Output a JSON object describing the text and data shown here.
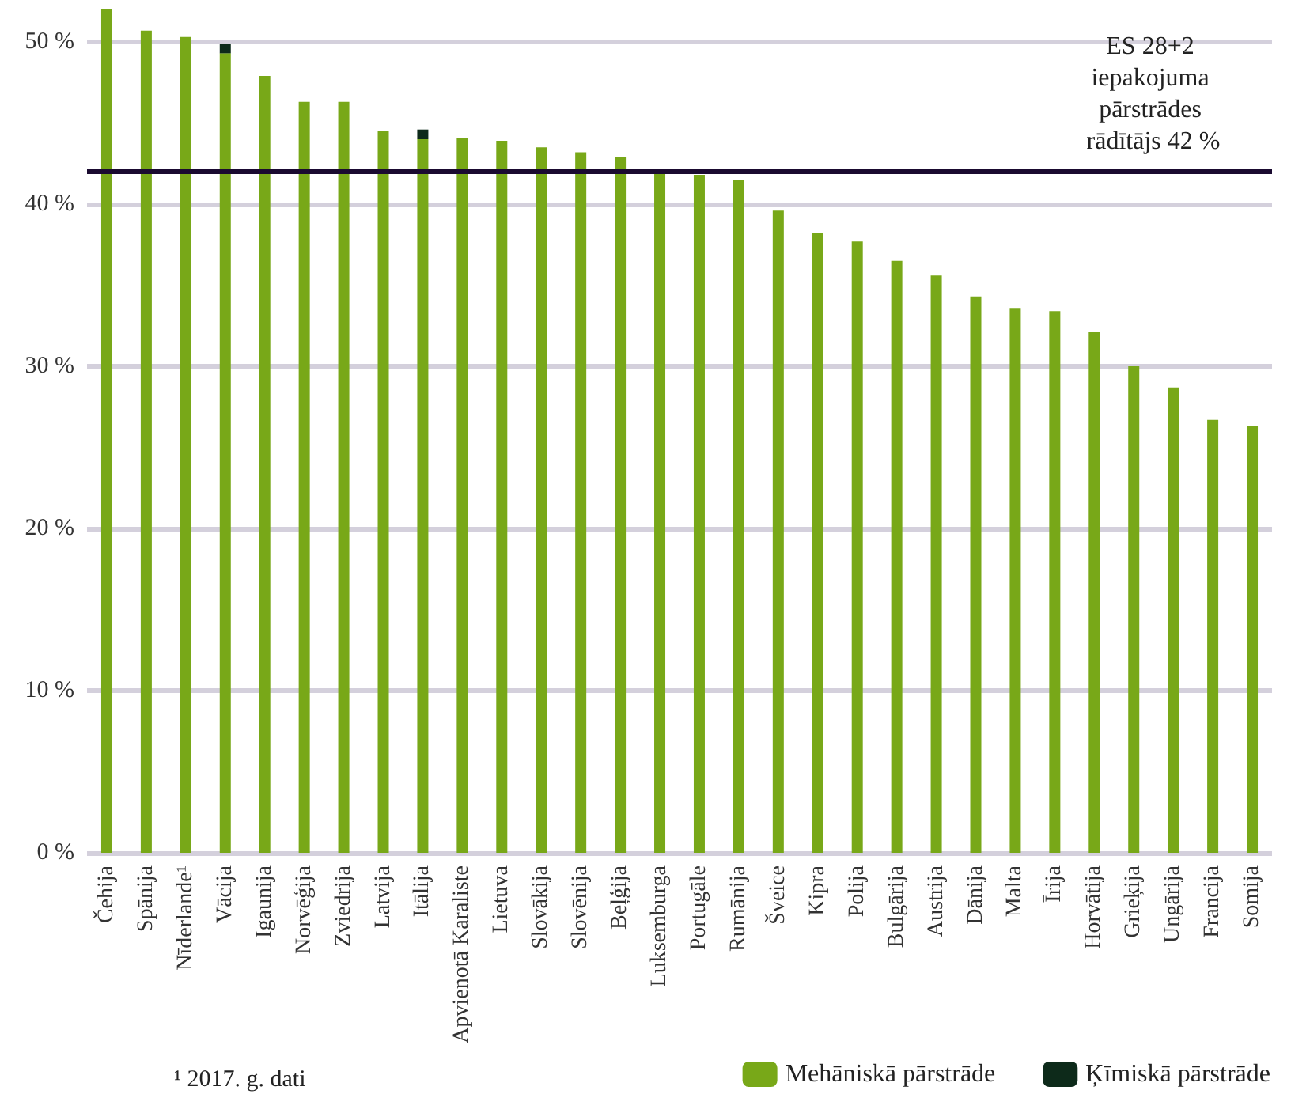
{
  "chart_data": {
    "type": "bar",
    "stacked": true,
    "categories": [
      "Čehija",
      "Spānija",
      "Nīderlande¹",
      "Vācija",
      "Igaunija",
      "Norvēģija",
      "Zviedrija",
      "Latvija",
      "Itālija",
      "Apvienotā Karaliste",
      "Lietuva",
      "Slovākija",
      "Slovēnija",
      "Beļģija",
      "Luksemburga",
      "Portugāle",
      "Rumānija",
      "Šveice",
      "Kipra",
      "Polija",
      "Bulgārija",
      "Austrija",
      "Dānija",
      "Malta",
      "Īrija",
      "Horvātija",
      "Grieķija",
      "Ungārija",
      "Francija",
      "Somija"
    ],
    "series": [
      {
        "name": "Mehāniskā pārstrāde",
        "color": "#78a818",
        "values": [
          52.0,
          50.7,
          50.3,
          49.3,
          47.9,
          46.3,
          46.3,
          44.5,
          44.0,
          44.1,
          43.9,
          43.5,
          43.2,
          42.9,
          42.0,
          41.8,
          41.5,
          39.6,
          38.2,
          37.7,
          36.5,
          35.6,
          34.3,
          33.6,
          33.4,
          32.1,
          30.0,
          28.7,
          26.7,
          26.3
        ]
      },
      {
        "name": "Ķīmiskā pārstrāde",
        "color": "#0d2a1a",
        "values": [
          null,
          null,
          null,
          0.6,
          null,
          null,
          null,
          null,
          0.6,
          null,
          null,
          null,
          null,
          null,
          null,
          null,
          null,
          null,
          null,
          null,
          null,
          null,
          null,
          null,
          null,
          null,
          null,
          null,
          null,
          null
        ]
      }
    ],
    "ylim": [
      0,
      52
    ],
    "yticks": [
      {
        "value": 0,
        "label": "0 %"
      },
      {
        "value": 10,
        "label": "10 %"
      },
      {
        "value": 20,
        "label": "20 %"
      },
      {
        "value": 30,
        "label": "30 %"
      },
      {
        "value": 40,
        "label": "40 %"
      },
      {
        "value": 50,
        "label": "50 %"
      }
    ],
    "grid": "y",
    "legend": "bottom right",
    "ref_lines": [
      {
        "axis": "y",
        "value": 42,
        "label": "ES 28+2 iepakojuma pārstrādes rādītājs 42 %",
        "color": "#1a0a30"
      }
    ],
    "annotations": [
      "¹ 2017. g. dati"
    ]
  }
}
